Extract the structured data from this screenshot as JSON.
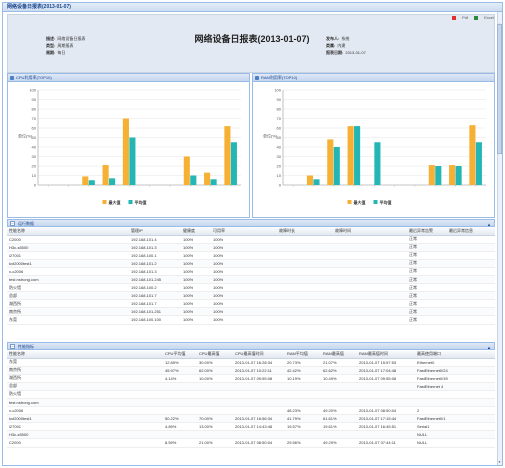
{
  "window": {
    "title": "网络设备日报表(2013-01-07)"
  },
  "toolbar": {
    "pdf_label": "Pdf",
    "excel_label": "Excel"
  },
  "report": {
    "title": "网络设备日报表(2013-01-07)",
    "left_meta": [
      {
        "label": "描述:",
        "value": "网络设备日报表"
      },
      {
        "label": "类型:",
        "value": "周期报表"
      },
      {
        "label": "周期:",
        "value": "每日"
      }
    ],
    "right_meta": [
      {
        "label": "发布人:",
        "value": "系统"
      },
      {
        "label": "类属:",
        "value": "内建"
      },
      {
        "label": "报表日期:",
        "value": "2013-01-07"
      }
    ]
  },
  "charts": {
    "cpu_title": "CPU利用率(TOP10)",
    "ram_title": "RAM利用率(TOP10)",
    "legend_max": "最大值",
    "legend_avg": "平均值",
    "ylabel": "单位(%)",
    "colors": {
      "max": "#f6b135",
      "avg": "#23b6b4"
    }
  },
  "chart_data": [
    {
      "type": "bar",
      "title": "CPU利用率(TOP10)",
      "ylabel": "单位(%)",
      "ylim": [
        0,
        100
      ],
      "yticks": [
        0,
        10,
        20,
        30,
        40,
        50,
        60,
        70,
        80,
        90,
        100
      ],
      "categories": [
        "",
        "",
        "",
        "",
        "",
        "",
        "",
        "",
        "",
        ""
      ],
      "series": [
        {
          "name": "最大值",
          "values": [
            0,
            0,
            9,
            21,
            70,
            0,
            0,
            30,
            13,
            62
          ]
        },
        {
          "name": "平均值",
          "values": [
            0,
            0,
            5,
            7,
            50,
            0,
            0,
            10,
            6,
            45
          ]
        }
      ]
    },
    {
      "type": "bar",
      "title": "RAM利用率(TOP10)",
      "ylabel": "单位(%)",
      "ylim": [
        0,
        100
      ],
      "yticks": [
        0,
        10,
        20,
        30,
        40,
        50,
        60,
        70,
        80,
        90,
        100
      ],
      "categories": [
        "",
        "",
        "",
        "",
        "",
        "",
        "",
        "",
        "",
        ""
      ],
      "series": [
        {
          "name": "最大值",
          "values": [
            0,
            10,
            48,
            62,
            0,
            0,
            0,
            21,
            21,
            63
          ]
        },
        {
          "name": "平均值",
          "values": [
            0,
            6,
            40,
            62,
            45,
            0,
            0,
            20,
            20,
            45
          ]
        }
      ]
    }
  ],
  "running": {
    "section_title": "运行数据",
    "headers": [
      "性能名称",
      "",
      "管理IP",
      "健康度",
      "可用率",
      "",
      "故障时长",
      "",
      "故障时间",
      "",
      "最后异常告警",
      "最后异常信息"
    ],
    "rows": [
      [
        "C2000",
        "",
        "192.168.101.4",
        "100%",
        "100%",
        "",
        "",
        "",
        "",
        "",
        "正常",
        ""
      ],
      [
        "H3c-s5500",
        "",
        "192.168.101.3",
        "100%",
        "100%",
        "",
        "",
        "",
        "",
        "",
        "正常",
        ""
      ],
      [
        "i27001",
        "",
        "192.168.100.1",
        "100%",
        "100%",
        "",
        "",
        "",
        "",
        "",
        "正常",
        ""
      ],
      [
        "kxt2000test1",
        "",
        "192.168.101.2",
        "100%",
        "100%",
        "",
        "",
        "",
        "",
        "",
        "正常",
        ""
      ],
      [
        "x-c2006",
        "",
        "192.168.101.3",
        "100%",
        "100%",
        "",
        "",
        "",
        "",
        "",
        "正常",
        ""
      ],
      [
        "test.nstrong.com",
        "",
        "192.168.101.245",
        "100%",
        "100%",
        "",
        "",
        "",
        "",
        "",
        "正常",
        ""
      ],
      [
        "防火墙",
        "",
        "192.168.100.2",
        "100%",
        "100%",
        "",
        "",
        "",
        "",
        "",
        "正常",
        ""
      ],
      [
        "总部",
        "",
        "192.168.101.7",
        "100%",
        "100%",
        "",
        "",
        "",
        "",
        "",
        "正常",
        ""
      ],
      [
        "湖西所",
        "",
        "192.168.101.7",
        "100%",
        "100%",
        "",
        "",
        "",
        "",
        "",
        "正常",
        ""
      ],
      [
        "南京所",
        "",
        "192.168.101.251",
        "100%",
        "100%",
        "",
        "",
        "",
        "",
        "",
        "正常",
        ""
      ],
      [
        "东莞",
        "",
        "192.168.100.100",
        "100%",
        "100%",
        "",
        "",
        "",
        "",
        "",
        "正常",
        ""
      ]
    ]
  },
  "performance": {
    "section_title": "性能指标",
    "headers": [
      "性能名称",
      "",
      "",
      "CPU平均值",
      "CPU最高值",
      "CPU最高值时间",
      "RAM平均值",
      "RAM最高值",
      "RAM最高值时间",
      "最高使用端口"
    ],
    "rows": [
      [
        "东莞",
        "",
        "",
        "12.85%",
        "30.00%",
        "2013-01-07 16:28:34",
        "20.73%",
        "21.07%",
        "2013-01-07 15:57:53",
        "Ethernet0"
      ],
      [
        "南京所",
        "",
        "",
        "45.97%",
        "62.00%",
        "2013-01-07 10:22:11",
        "42.42%",
        "62.62%",
        "2013-01-07 17:04:48",
        "FastEthernet0/24"
      ],
      [
        "湖西所",
        "",
        "",
        "4.14%",
        "10.00%",
        "2013-01-07 09:55:08",
        "10.19%",
        "10.49%",
        "2013-01-07 09:55:08",
        "FastEthernet0/39"
      ],
      [
        "总部",
        "",
        "",
        "",
        "",
        "",
        "",
        "",
        "",
        "FastEthernet 4"
      ],
      [
        "防火墙",
        "",
        "",
        "",
        "",
        "",
        "",
        "",
        "",
        ""
      ],
      [
        "test.nstrong.com",
        "",
        "",
        "",
        "",
        "",
        "",
        "",
        "",
        ""
      ],
      [
        "x-c2006",
        "",
        "",
        "",
        "",
        "",
        "48.23%",
        "49.20%",
        "2013-01-07 08:50:04",
        "2"
      ],
      [
        "kxt2000test1",
        "",
        "",
        "50.22%",
        "70.00%",
        "2013-01-07 16:56:34",
        "41.79%",
        "61.61%",
        "2013-01-07 17:15:44",
        "FastEthernet0/1"
      ],
      [
        "i27001",
        "",
        "",
        "4.89%",
        "13.00%",
        "2013-01-07 14:43:48",
        "19.57%",
        "19.61%",
        "2013-01-07 16:45:51",
        "Serial1"
      ],
      [
        "H3c-s5500",
        "",
        "",
        "",
        "",
        "",
        "",
        "",
        "",
        "NULL"
      ],
      [
        "C2000",
        "",
        "",
        "8.59%",
        "21.00%",
        "2013-01-07 08:50:04",
        "29.56%",
        "49.29%",
        "2013-01-07 07:44:11",
        "NULL"
      ]
    ]
  }
}
